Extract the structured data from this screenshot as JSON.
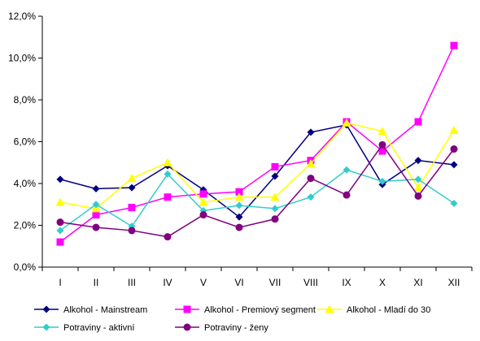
{
  "chart_data": {
    "type": "line",
    "categories": [
      "I",
      "II",
      "III",
      "IV",
      "V",
      "VI",
      "VII",
      "VIII",
      "IX",
      "X",
      "XI",
      "XII"
    ],
    "ylim": [
      0,
      12
    ],
    "yticks": [
      "0,0%",
      "2,0%",
      "4,0%",
      "6,0%",
      "8,0%",
      "10,0%",
      "12,0%"
    ],
    "grid": false,
    "legend_position": "bottom",
    "series": [
      {
        "name": "Alkohol - Mainstream",
        "color": "#000080",
        "marker": "diamond",
        "values": [
          4.2,
          3.75,
          3.8,
          4.85,
          3.7,
          2.4,
          4.35,
          6.45,
          6.8,
          3.95,
          5.1,
          4.9
        ]
      },
      {
        "name": "Alkohol - Premiový segment",
        "color": "#ff00ff",
        "marker": "square",
        "values": [
          1.2,
          2.5,
          2.85,
          3.35,
          3.5,
          3.6,
          4.8,
          5.1,
          6.95,
          5.55,
          6.95,
          10.6
        ]
      },
      {
        "name": "Alkohol - Mladí do 30",
        "color": "#ffff00",
        "marker": "triangle",
        "values": [
          3.1,
          2.8,
          4.25,
          5.0,
          3.1,
          3.35,
          3.35,
          4.95,
          6.9,
          6.5,
          3.8,
          6.55
        ]
      },
      {
        "name": "Potraviny - aktivní",
        "color": "#33cccc",
        "marker": "diamond",
        "values": [
          1.75,
          3.0,
          1.95,
          4.45,
          2.7,
          2.95,
          2.8,
          3.35,
          4.65,
          4.1,
          4.2,
          3.05
        ]
      },
      {
        "name": "Potraviny - ženy",
        "color": "#800080",
        "marker": "circle",
        "values": [
          2.15,
          1.9,
          1.75,
          1.45,
          2.5,
          1.9,
          2.3,
          4.25,
          3.45,
          5.85,
          3.4,
          5.65
        ]
      }
    ]
  }
}
